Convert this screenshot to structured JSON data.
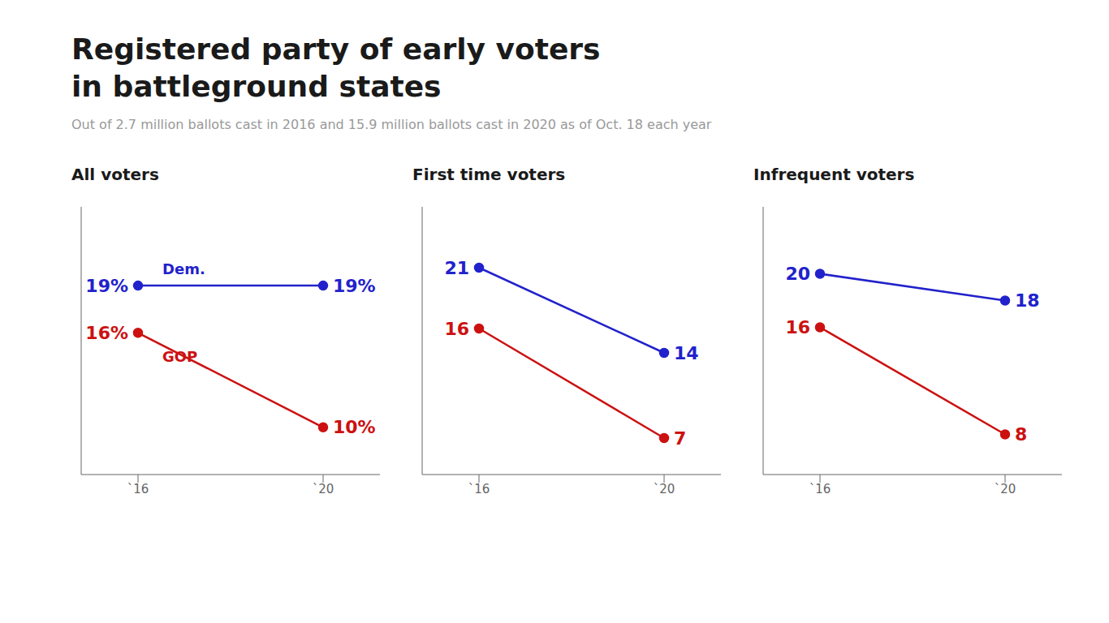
{
  "title": "Registered party of early voters\nin battleground states",
  "subtitle": "Out of 2.7 million ballots cast in 2016 and 15.9 million ballots cast in 2020 as of Oct. 18 each year",
  "chart_data": [
    {
      "type": "line",
      "title": "All voters",
      "categories": [
        "`16",
        "`20"
      ],
      "series": [
        {
          "name": "Dem.",
          "color": "#2222cc",
          "values": [
            19,
            19
          ],
          "value_labels": [
            "19%",
            "19%"
          ]
        },
        {
          "name": "GOP",
          "color": "#cc1111",
          "values": [
            16,
            10
          ],
          "value_labels": [
            "16%",
            "10%"
          ]
        }
      ],
      "ylim": [
        7,
        24
      ],
      "grid": false,
      "tick_labels": "x",
      "data_labels": true,
      "marker": "circle"
    },
    {
      "type": "line",
      "title": "First time voters",
      "categories": [
        "`16",
        "`20"
      ],
      "series": [
        {
          "color": "#2222cc",
          "values": [
            21,
            14
          ],
          "value_labels": [
            "21",
            "14"
          ]
        },
        {
          "color": "#cc1111",
          "values": [
            16,
            7
          ],
          "value_labels": [
            "16",
            "7"
          ]
        }
      ],
      "ylim": [
        4,
        26
      ],
      "grid": false,
      "tick_labels": "x",
      "data_labels": true,
      "marker": "circle"
    },
    {
      "type": "line",
      "title": "Infrequent voters",
      "categories": [
        "`16",
        "`20"
      ],
      "series": [
        {
          "color": "#2222cc",
          "values": [
            20,
            18
          ],
          "value_labels": [
            "20",
            "18"
          ]
        },
        {
          "color": "#cc1111",
          "values": [
            16,
            8
          ],
          "value_labels": [
            "16",
            "8"
          ]
        }
      ],
      "ylim": [
        5,
        25
      ],
      "grid": false,
      "tick_labels": "x",
      "data_labels": true,
      "marker": "circle"
    }
  ]
}
